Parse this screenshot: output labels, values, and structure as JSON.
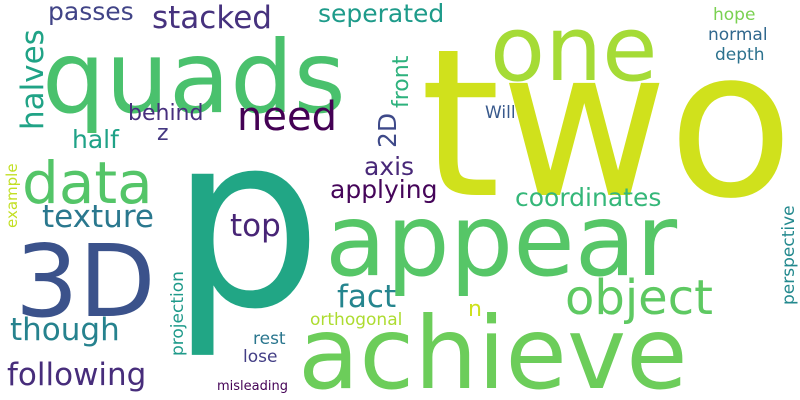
{
  "background": "#ffffff",
  "words": [
    {
      "text": "p",
      "color": "#21a685"
    },
    {
      "text": "two",
      "color": "#d0e11c"
    },
    {
      "text": "quads",
      "color": "#4ac16d"
    },
    {
      "text": "appear",
      "color": "#56c667"
    },
    {
      "text": "achieve",
      "color": "#6ccd5a"
    },
    {
      "text": "one",
      "color": "#a5db36"
    },
    {
      "text": "3D",
      "color": "#3b528b"
    },
    {
      "text": "data",
      "color": "#54c568"
    },
    {
      "text": "object",
      "color": "#5ec962"
    },
    {
      "text": "need",
      "color": "#440154"
    },
    {
      "text": "stacked",
      "color": "#46327e"
    },
    {
      "text": "texture",
      "color": "#2a788e"
    },
    {
      "text": "following",
      "color": "#472d7b"
    },
    {
      "text": "though",
      "color": "#26828e"
    },
    {
      "text": "fact",
      "color": "#25858e"
    },
    {
      "text": "top",
      "color": "#482576"
    },
    {
      "text": "halves",
      "color": "#20a386"
    },
    {
      "text": "seperated",
      "color": "#1e9b8a"
    },
    {
      "text": "passes",
      "color": "#414487"
    },
    {
      "text": "front",
      "color": "#2db27d"
    },
    {
      "text": "axis",
      "color": "#482878"
    },
    {
      "text": "applying",
      "color": "#450559"
    },
    {
      "text": "coordinates",
      "color": "#35b779"
    },
    {
      "text": "2D",
      "color": "#3e4989"
    },
    {
      "text": "half",
      "color": "#1fa287"
    },
    {
      "text": "behind",
      "color": "#472f7d"
    },
    {
      "text": "z",
      "color": "#453882"
    },
    {
      "text": "hope",
      "color": "#7ad151"
    },
    {
      "text": "normal",
      "color": "#31688e"
    },
    {
      "text": "depth",
      "color": "#2c728e"
    },
    {
      "text": "Will",
      "color": "#38598c"
    },
    {
      "text": "example",
      "color": "#c2df23"
    },
    {
      "text": "projection",
      "color": "#1f9a8a"
    },
    {
      "text": "perspective",
      "color": "#23898e"
    },
    {
      "text": "n",
      "color": "#cde11d"
    },
    {
      "text": "rest",
      "color": "#2a768e"
    },
    {
      "text": "orthogonal",
      "color": "#addc30"
    },
    {
      "text": "lose",
      "color": "#433e85"
    },
    {
      "text": "misleading",
      "color": "#440256"
    }
  ]
}
